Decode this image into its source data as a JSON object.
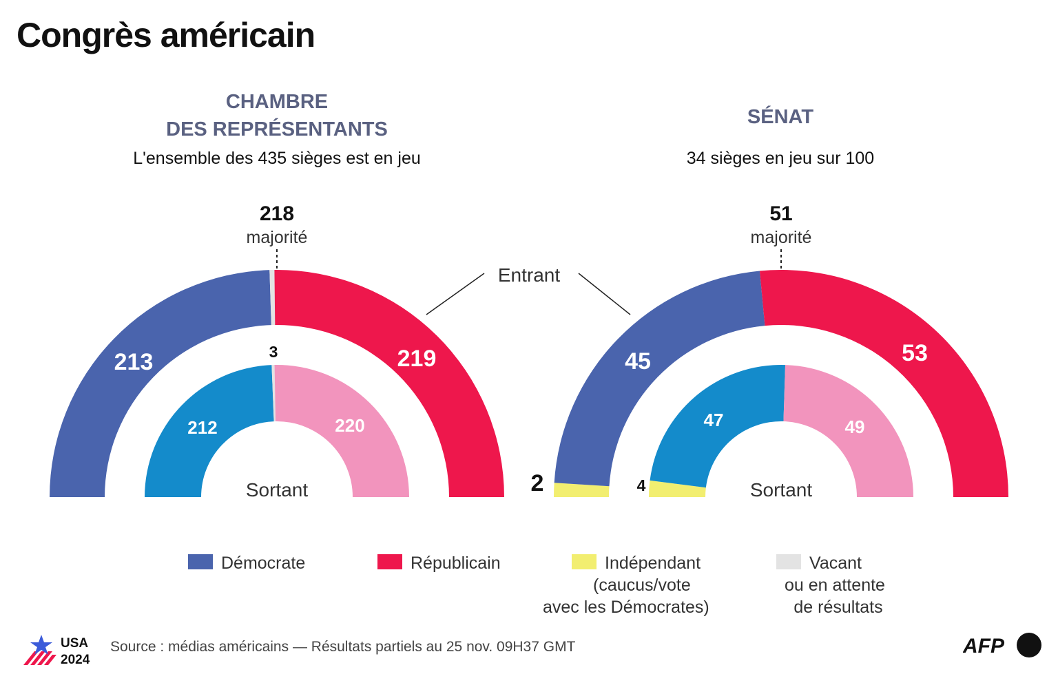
{
  "title": "Congrès américain",
  "house": {
    "heading_line1": "CHAMBRE",
    "heading_line2": "DES REPRÉSENTANTS",
    "subtitle": "L'ensemble des 435 sièges est en jeu",
    "majority_value": "218",
    "majority_label": "majorité"
  },
  "senate": {
    "heading": "SÉNAT",
    "subtitle": "34 sièges en jeu sur 100",
    "majority_value": "51",
    "majority_label": "majorité"
  },
  "labels": {
    "incoming": "Entrant",
    "outgoing": "Sortant"
  },
  "colors": {
    "democrat": "#4a64ad",
    "republican": "#ee174c",
    "democrat_outgoing": "#148bcb",
    "republican_outgoing": "#f294bd",
    "independent": "#f2ee70",
    "vacant": "#e3e3e3",
    "heading": "#5a6181"
  },
  "chart_data": [
    {
      "type": "pie",
      "subtype": "half-donut",
      "title": "Chambre des représentants — Entrant",
      "total": 435,
      "majority": 218,
      "series": [
        {
          "name": "Démocrate",
          "value": 213,
          "label": "213"
        },
        {
          "name": "Vacant ou en attente de résultats",
          "value": 3,
          "label": "3"
        },
        {
          "name": "Républicain",
          "value": 219,
          "label": "219"
        }
      ]
    },
    {
      "type": "pie",
      "subtype": "half-donut",
      "title": "Chambre des représentants — Sortant",
      "total": 435,
      "series": [
        {
          "name": "Démocrate",
          "value": 212,
          "label": "212"
        },
        {
          "name": "Vacant ou en attente de résultats",
          "value": 3,
          "label": ""
        },
        {
          "name": "Républicain",
          "value": 220,
          "label": "220"
        }
      ]
    },
    {
      "type": "pie",
      "subtype": "half-donut",
      "title": "Sénat — Entrant",
      "total": 100,
      "majority": 51,
      "series": [
        {
          "name": "Indépendant",
          "value": 2,
          "label": "2"
        },
        {
          "name": "Démocrate",
          "value": 45,
          "label": "45"
        },
        {
          "name": "Républicain",
          "value": 53,
          "label": "53"
        }
      ]
    },
    {
      "type": "pie",
      "subtype": "half-donut",
      "title": "Sénat — Sortant",
      "total": 100,
      "series": [
        {
          "name": "Indépendant",
          "value": 4,
          "label": "4"
        },
        {
          "name": "Démocrate",
          "value": 47,
          "label": "47"
        },
        {
          "name": "Républicain",
          "value": 49,
          "label": "49"
        }
      ]
    }
  ],
  "legend": [
    {
      "key": "democrat",
      "lines": [
        "Démocrate"
      ]
    },
    {
      "key": "republican",
      "lines": [
        "Républicain"
      ]
    },
    {
      "key": "independent",
      "lines": [
        "Indépendant",
        "(caucus/vote",
        "avec les Démocrates)"
      ]
    },
    {
      "key": "vacant",
      "lines": [
        "Vacant",
        "ou en attente",
        "de résultats"
      ]
    }
  ],
  "footer": {
    "badge_line1": "USA",
    "badge_line2": "2024",
    "source": "Source : médias américains — Résultats partiels au 25 nov. 09H37 GMT",
    "agency": "AFP"
  }
}
